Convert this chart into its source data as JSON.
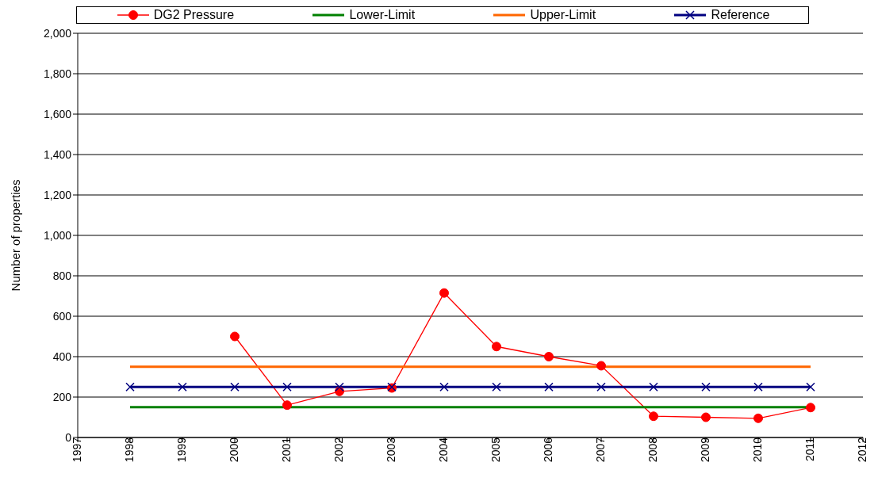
{
  "chart_data": {
    "type": "line",
    "ylabel": "Number of properties",
    "x": [
      1998,
      1999,
      2000,
      2001,
      2002,
      2003,
      2004,
      2005,
      2006,
      2007,
      2008,
      2009,
      2010,
      2011
    ],
    "series": [
      {
        "name": "DG2 Pressure",
        "color": "#ff0000",
        "marker": "circle",
        "values": [
          null,
          null,
          500,
          160,
          228,
          245,
          715,
          450,
          400,
          355,
          105,
          100,
          95,
          148
        ]
      },
      {
        "name": "Lower-Limit",
        "color": "#008000",
        "marker": "none",
        "values": [
          150,
          150,
          150,
          150,
          150,
          150,
          150,
          150,
          150,
          150,
          150,
          150,
          150,
          150
        ]
      },
      {
        "name": "Upper-Limit",
        "color": "#ff6600",
        "marker": "none",
        "values": [
          350,
          350,
          350,
          350,
          350,
          350,
          350,
          350,
          350,
          350,
          350,
          350,
          350,
          350
        ]
      },
      {
        "name": "Reference",
        "color": "#000080",
        "marker": "cross",
        "values": [
          250,
          250,
          250,
          250,
          250,
          250,
          250,
          250,
          250,
          250,
          250,
          250,
          250,
          250
        ]
      }
    ],
    "xlim": [
      1997,
      2012
    ],
    "xticks": [
      1997,
      1998,
      1999,
      2000,
      2001,
      2002,
      2003,
      2004,
      2005,
      2006,
      2007,
      2008,
      2009,
      2010,
      2011,
      2012
    ],
    "ylim": [
      0,
      2000
    ],
    "yticks": [
      0,
      200,
      400,
      600,
      800,
      {
        "value": 1000,
        "label": "1,000"
      },
      {
        "value": 1200,
        "label": "1,200"
      },
      {
        "value": 1400,
        "label": "1,400"
      },
      {
        "value": 1600,
        "label": "1,600"
      },
      {
        "value": 1800,
        "label": "1,800"
      },
      {
        "value": 2000,
        "label": "2,000"
      }
    ],
    "grid": "y",
    "legend": "top"
  }
}
